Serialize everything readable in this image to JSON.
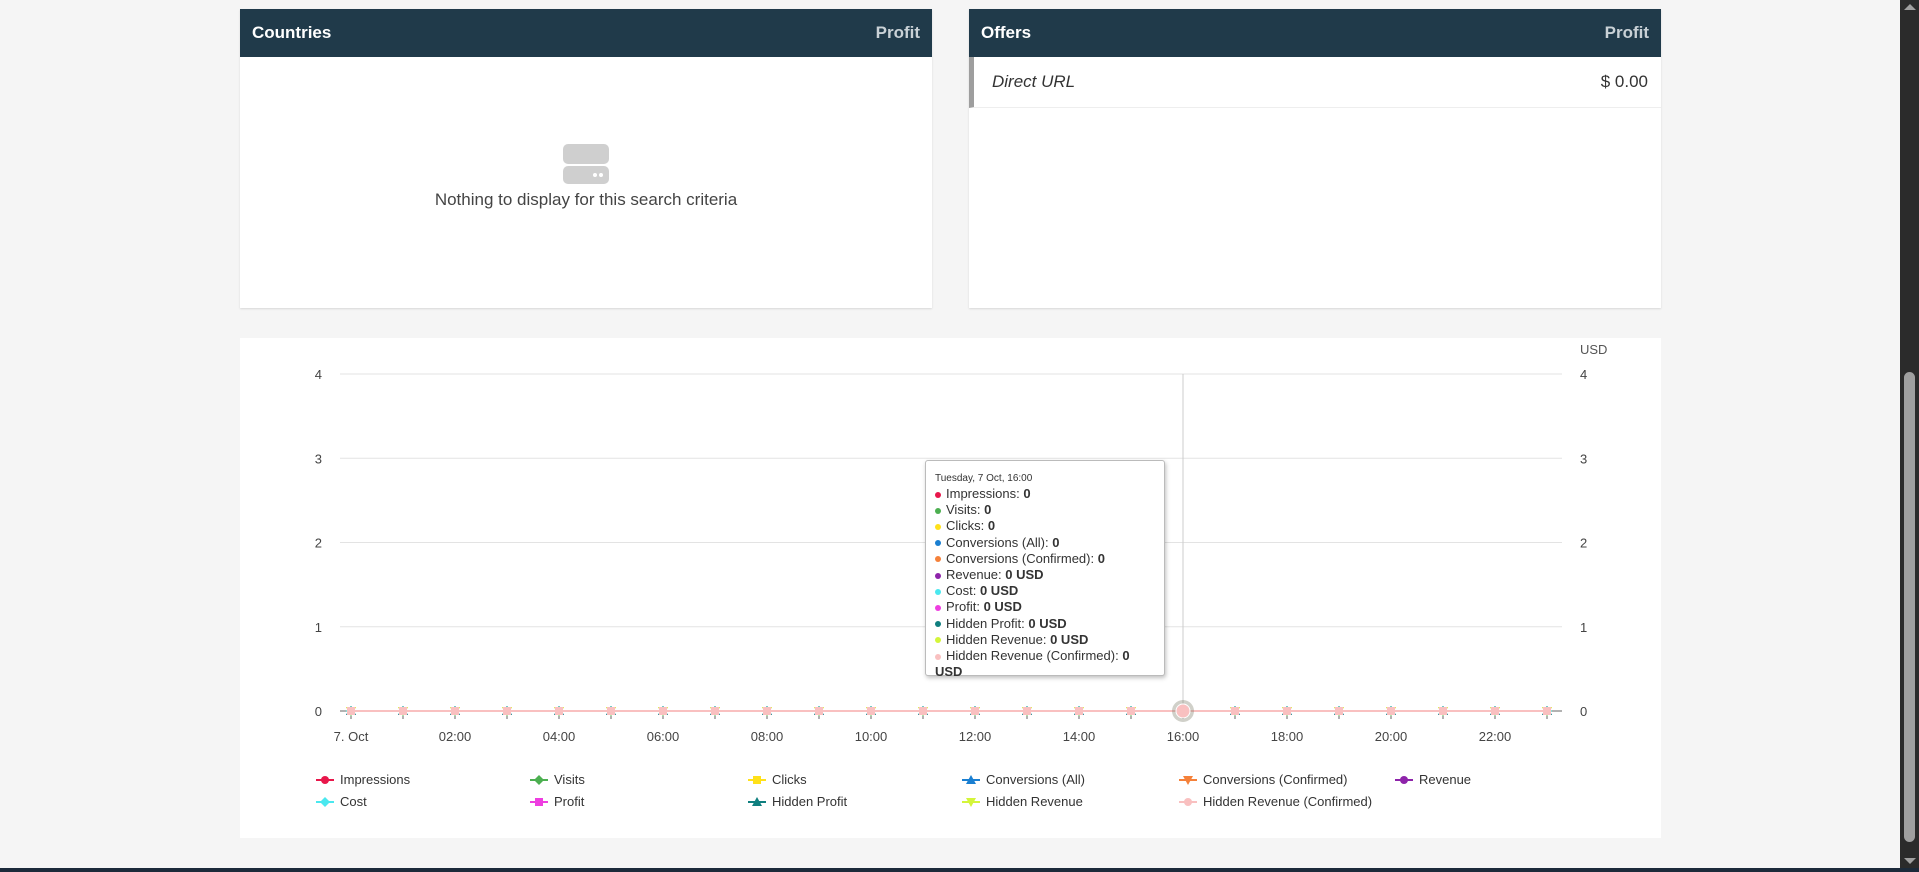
{
  "countries": {
    "title": "Countries",
    "col": "Profit",
    "empty_text": "Nothing to display for this search criteria",
    "empty_icon": "empty-box-icon"
  },
  "offers": {
    "title": "Offers",
    "col": "Profit",
    "rows": [
      {
        "name": "Direct URL",
        "profit": "$ 0.00"
      }
    ]
  },
  "tooltip": {
    "title": "Tuesday, 7 Oct, 16:00",
    "items": [
      {
        "label": "Impressions",
        "value": "0"
      },
      {
        "label": "Visits",
        "value": "0"
      },
      {
        "label": "Clicks",
        "value": "0"
      },
      {
        "label": "Conversions (All)",
        "value": "0"
      },
      {
        "label": "Conversions (Confirmed)",
        "value": "0"
      },
      {
        "label": "Revenue",
        "value": "0 USD"
      },
      {
        "label": "Cost",
        "value": "0 USD"
      },
      {
        "label": "Profit",
        "value": "0 USD"
      },
      {
        "label": "Hidden Profit",
        "value": "0 USD"
      },
      {
        "label": "Hidden Revenue",
        "value": "0 USD"
      },
      {
        "label": "Hidden Revenue (Confirmed)",
        "value": "0 USD"
      }
    ]
  },
  "chart_data": {
    "type": "line",
    "x": [
      "7. Oct",
      "01:00",
      "02:00",
      "03:00",
      "04:00",
      "05:00",
      "06:00",
      "07:00",
      "08:00",
      "09:00",
      "10:00",
      "11:00",
      "12:00",
      "13:00",
      "14:00",
      "15:00",
      "16:00",
      "17:00",
      "18:00",
      "19:00",
      "20:00",
      "21:00",
      "22:00",
      "23:00"
    ],
    "x_tick_labels": [
      "7. Oct",
      "02:00",
      "04:00",
      "06:00",
      "08:00",
      "10:00",
      "12:00",
      "14:00",
      "16:00",
      "18:00",
      "20:00",
      "22:00"
    ],
    "ylim": [
      0,
      4
    ],
    "y_ticks": [
      0,
      1,
      2,
      3,
      4
    ],
    "y2label": "USD",
    "y2lim": [
      0,
      4
    ],
    "grid": true,
    "legend": "bottom",
    "highlighted_x": "16:00",
    "series": [
      {
        "name": "Impressions",
        "color": "#e8174b",
        "marker": "circle",
        "values": [
          0,
          0,
          0,
          0,
          0,
          0,
          0,
          0,
          0,
          0,
          0,
          0,
          0,
          0,
          0,
          0,
          0,
          0,
          0,
          0,
          0,
          0,
          0,
          0
        ]
      },
      {
        "name": "Visits",
        "color": "#4caf50",
        "marker": "diamond",
        "values": [
          0,
          0,
          0,
          0,
          0,
          0,
          0,
          0,
          0,
          0,
          0,
          0,
          0,
          0,
          0,
          0,
          0,
          0,
          0,
          0,
          0,
          0,
          0,
          0
        ]
      },
      {
        "name": "Clicks",
        "color": "#ffe11a",
        "marker": "square",
        "values": [
          0,
          0,
          0,
          0,
          0,
          0,
          0,
          0,
          0,
          0,
          0,
          0,
          0,
          0,
          0,
          0,
          0,
          0,
          0,
          0,
          0,
          0,
          0,
          0
        ]
      },
      {
        "name": "Conversions (All)",
        "color": "#1a7fd1",
        "marker": "triangle",
        "values": [
          0,
          0,
          0,
          0,
          0,
          0,
          0,
          0,
          0,
          0,
          0,
          0,
          0,
          0,
          0,
          0,
          0,
          0,
          0,
          0,
          0,
          0,
          0,
          0
        ]
      },
      {
        "name": "Conversions (Confirmed)",
        "color": "#f5813a",
        "marker": "triangle-down",
        "values": [
          0,
          0,
          0,
          0,
          0,
          0,
          0,
          0,
          0,
          0,
          0,
          0,
          0,
          0,
          0,
          0,
          0,
          0,
          0,
          0,
          0,
          0,
          0,
          0
        ]
      },
      {
        "name": "Revenue",
        "color": "#8e24aa",
        "marker": "circle",
        "values": [
          0,
          0,
          0,
          0,
          0,
          0,
          0,
          0,
          0,
          0,
          0,
          0,
          0,
          0,
          0,
          0,
          0,
          0,
          0,
          0,
          0,
          0,
          0,
          0
        ]
      },
      {
        "name": "Cost",
        "color": "#4ae8ef",
        "marker": "diamond",
        "values": [
          0,
          0,
          0,
          0,
          0,
          0,
          0,
          0,
          0,
          0,
          0,
          0,
          0,
          0,
          0,
          0,
          0,
          0,
          0,
          0,
          0,
          0,
          0,
          0
        ]
      },
      {
        "name": "Profit",
        "color": "#ee3ee0",
        "marker": "square",
        "values": [
          0,
          0,
          0,
          0,
          0,
          0,
          0,
          0,
          0,
          0,
          0,
          0,
          0,
          0,
          0,
          0,
          0,
          0,
          0,
          0,
          0,
          0,
          0,
          0
        ]
      },
      {
        "name": "Hidden Profit",
        "color": "#0f7f7f",
        "marker": "triangle",
        "values": [
          0,
          0,
          0,
          0,
          0,
          0,
          0,
          0,
          0,
          0,
          0,
          0,
          0,
          0,
          0,
          0,
          0,
          0,
          0,
          0,
          0,
          0,
          0,
          0
        ]
      },
      {
        "name": "Hidden Revenue",
        "color": "#d4f53a",
        "marker": "triangle-down",
        "values": [
          0,
          0,
          0,
          0,
          0,
          0,
          0,
          0,
          0,
          0,
          0,
          0,
          0,
          0,
          0,
          0,
          0,
          0,
          0,
          0,
          0,
          0,
          0,
          0
        ]
      },
      {
        "name": "Hidden Revenue (Confirmed)",
        "color": "#f9c0c0",
        "marker": "circle",
        "values": [
          0,
          0,
          0,
          0,
          0,
          0,
          0,
          0,
          0,
          0,
          0,
          0,
          0,
          0,
          0,
          0,
          0,
          0,
          0,
          0,
          0,
          0,
          0,
          0
        ]
      }
    ]
  }
}
